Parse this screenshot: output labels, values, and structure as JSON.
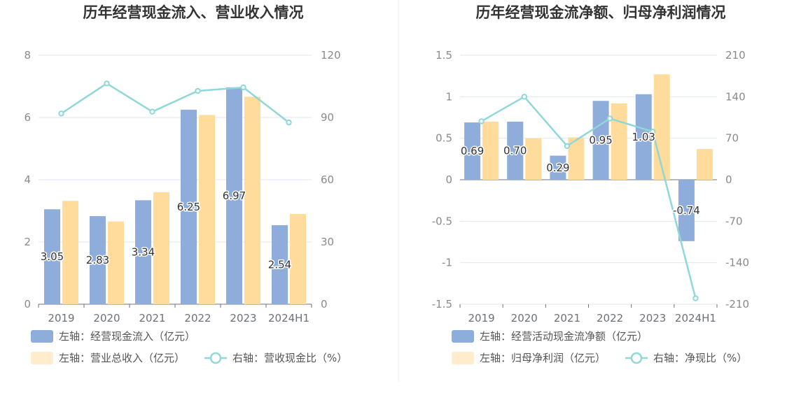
{
  "chart_data": [
    {
      "type": "bar",
      "title": "历年经营现金流入、营业收入情况",
      "categories": [
        "2019",
        "2020",
        "2021",
        "2022",
        "2023",
        "2024H1"
      ],
      "y_left": {
        "min": 0,
        "max": 8,
        "ticks": [
          "8",
          "6",
          "4",
          "2",
          "0"
        ]
      },
      "y_right": {
        "min": 0,
        "max": 120,
        "ticks": [
          "120",
          "90",
          "60",
          "30",
          "0"
        ]
      },
      "series": [
        {
          "name": "左轴：经营现金流入（亿元）",
          "kind": "bar",
          "axis": "left",
          "color": "#8eaddb",
          "values": [
            3.05,
            2.83,
            3.34,
            6.25,
            6.97,
            2.54
          ],
          "labels": [
            "3.05",
            "2.83",
            "3.34",
            "6.25",
            "6.97",
            "2.54"
          ]
        },
        {
          "name": "左轴：营业总收入（亿元）",
          "kind": "bar",
          "axis": "left",
          "color": "#ffdb9c",
          "values": [
            3.32,
            2.66,
            3.6,
            6.08,
            6.67,
            2.9
          ]
        },
        {
          "name": "右轴：营收现金比（%）",
          "kind": "line",
          "axis": "right",
          "color": "#8fd7d8",
          "values": [
            91.9,
            106.4,
            92.8,
            102.8,
            104.5,
            87.6
          ]
        }
      ],
      "grid": true,
      "legend_position": "bottom-left"
    },
    {
      "type": "bar",
      "title": "历年经营现金流净额、归母净利润情况",
      "categories": [
        "2019",
        "2020",
        "2021",
        "2022",
        "2023",
        "2024H1"
      ],
      "y_left": {
        "min": -1.5,
        "max": 1.5,
        "ticks": [
          "1.5",
          "1",
          "0.5",
          "0",
          "-0.5",
          "-1",
          "-1.5"
        ]
      },
      "y_right": {
        "min": -210,
        "max": 210,
        "ticks": [
          "210",
          "140",
          "70",
          "0",
          "-70",
          "-140",
          "-210"
        ]
      },
      "series": [
        {
          "name": "左轴：经营活动现金流净额（亿元）",
          "kind": "bar",
          "axis": "left",
          "color": "#8eaddb",
          "values": [
            0.69,
            0.7,
            0.29,
            0.95,
            1.03,
            -0.74
          ],
          "labels": [
            "0.69",
            "0.70",
            "0.29",
            "0.95",
            "1.03",
            "-0.74"
          ]
        },
        {
          "name": "左轴：归母净利润（亿元）",
          "kind": "bar",
          "axis": "left",
          "color": "#ffdb9c",
          "values": [
            0.7,
            0.5,
            0.51,
            0.92,
            1.27,
            0.37
          ]
        },
        {
          "name": "右轴：净现比（%）",
          "kind": "line",
          "axis": "right",
          "color": "#8fd7d8",
          "values": [
            98.6,
            140,
            56.9,
            103.3,
            81.1,
            -200
          ]
        }
      ],
      "grid": true,
      "legend_position": "bottom-left"
    }
  ]
}
